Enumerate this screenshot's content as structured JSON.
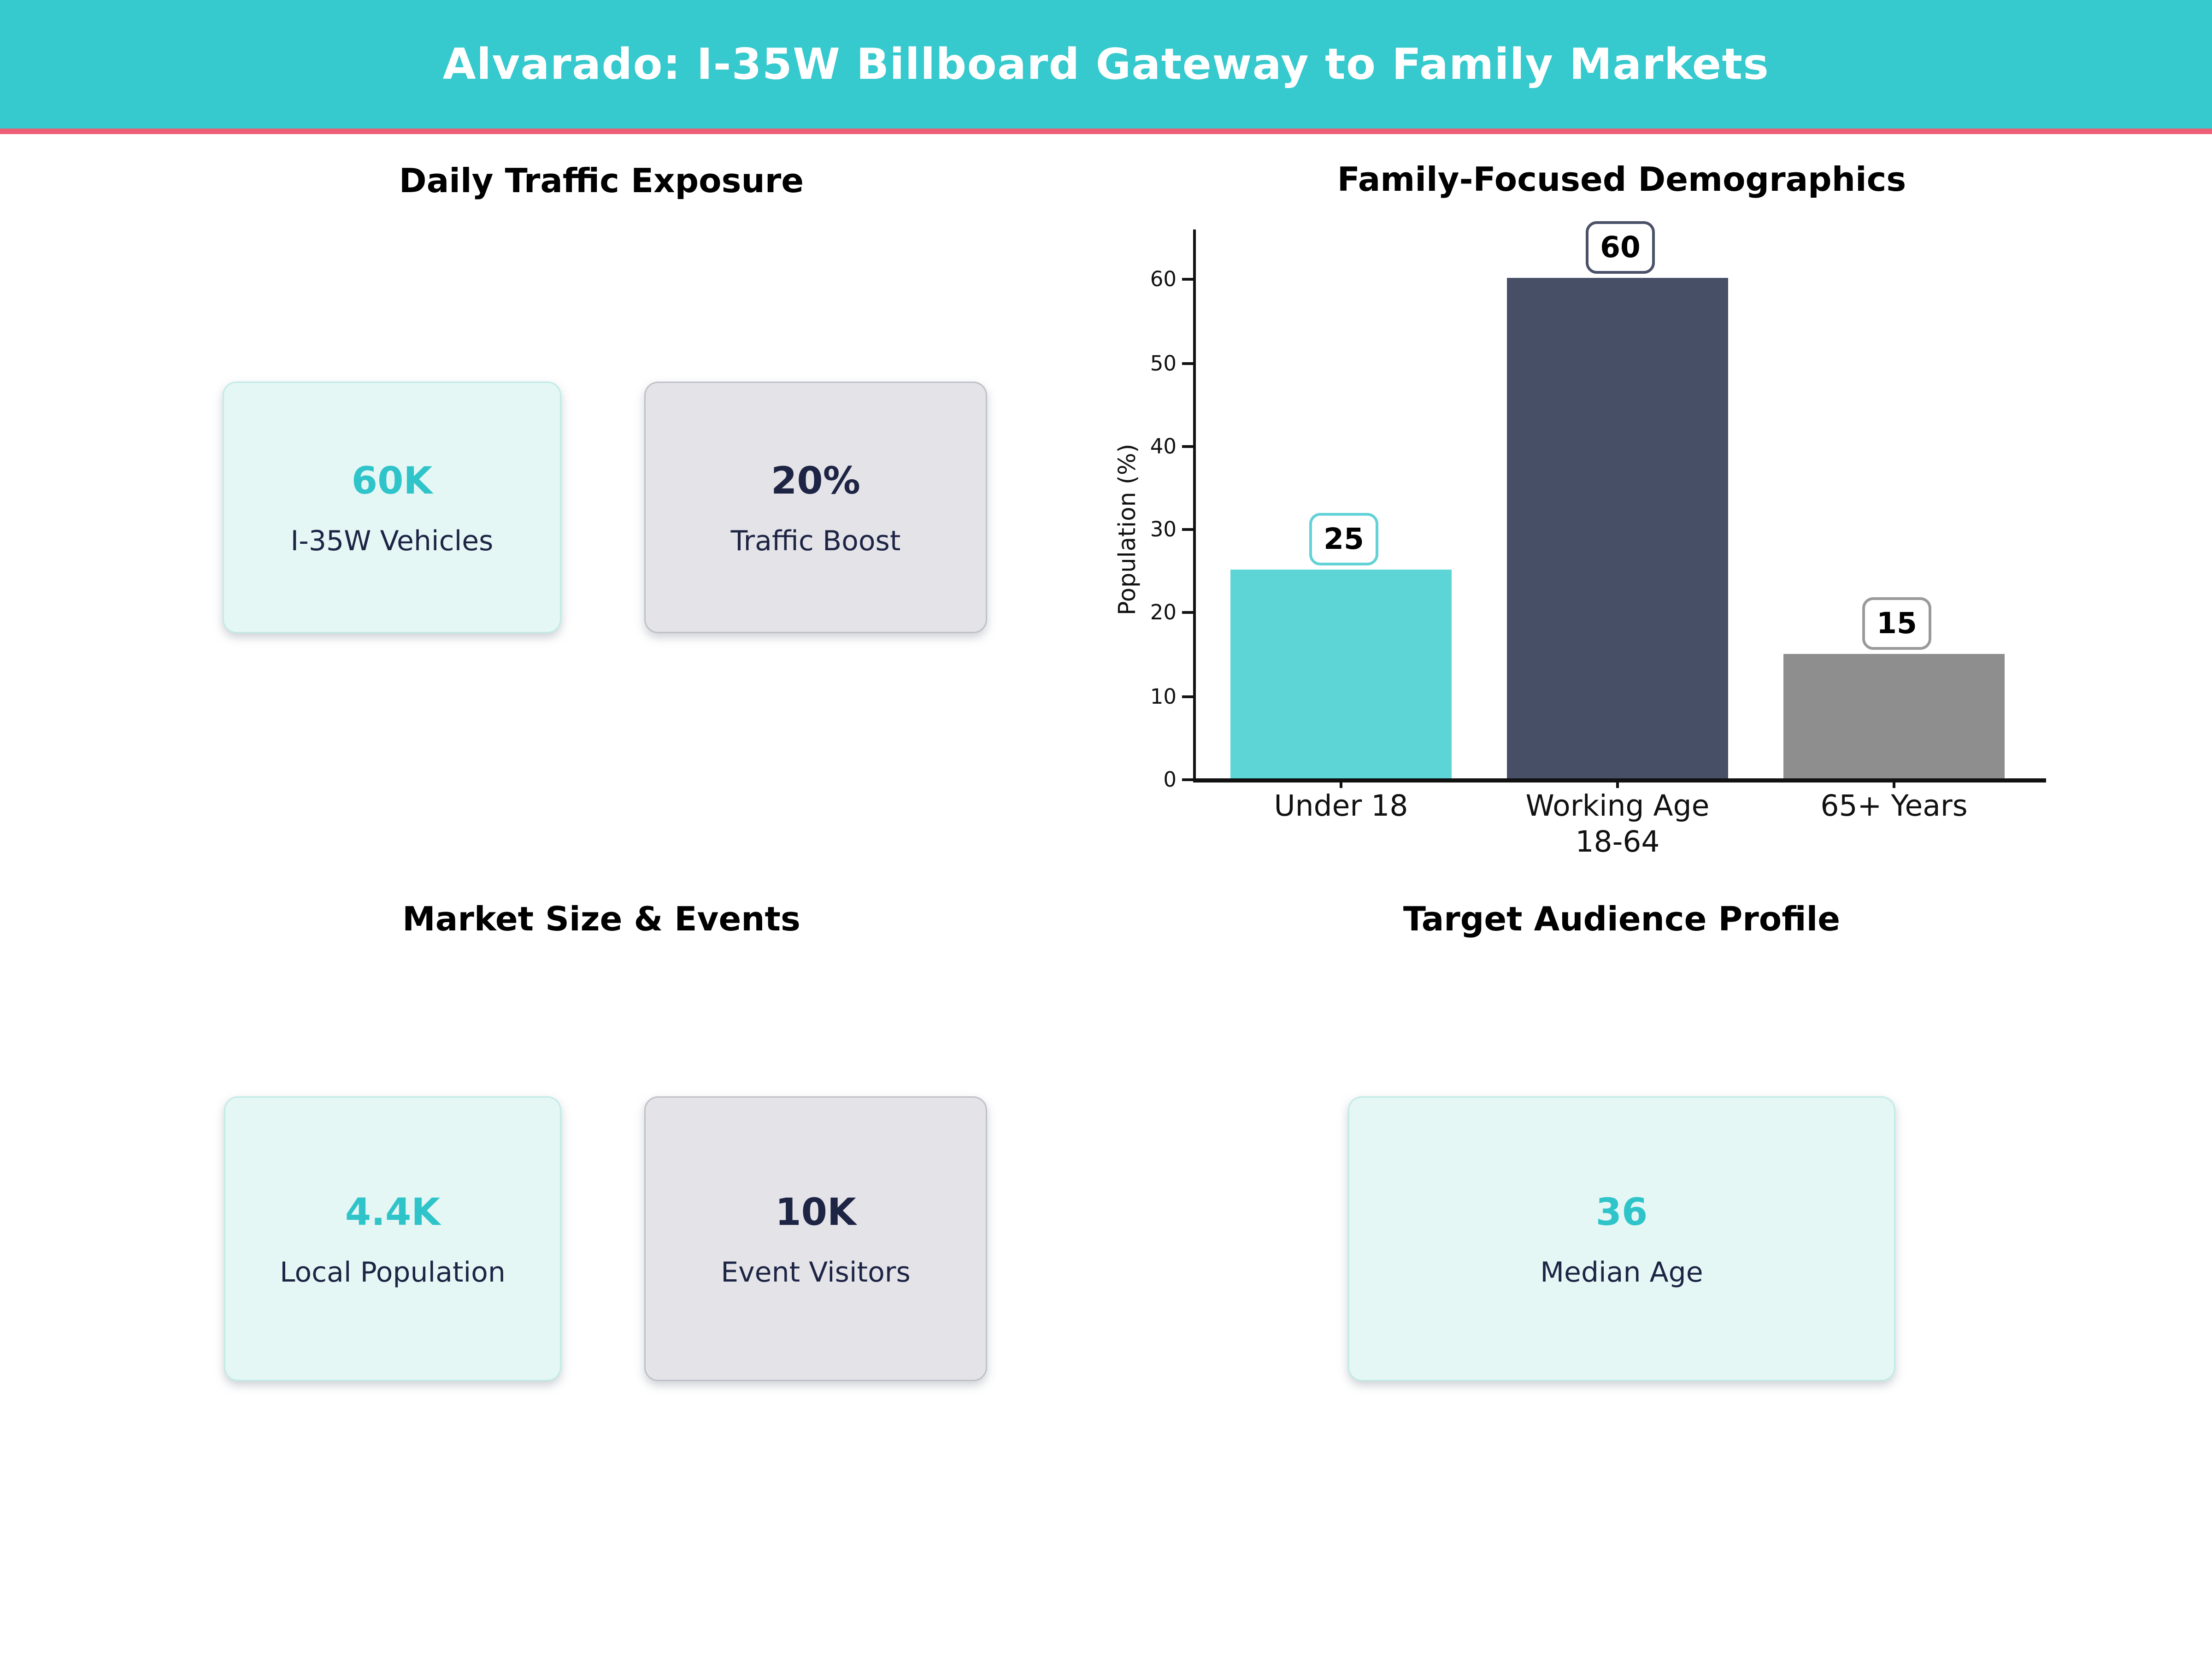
{
  "header": {
    "title": "Alvarado: I-35W Billboard Gateway to Family Markets"
  },
  "colors": {
    "header_teal": "#36c9cd",
    "accent_pink": "#ec5f76",
    "mint_card_bg": "#e4f7f5",
    "mint_card_border": "#c2ebe6",
    "gray_card_bg": "#e3e3e8",
    "gray_card_border": "#c0c0c9",
    "teal_value_text": "#2fc4c9",
    "navy_text": "#1d2444",
    "axis_black": "#111111"
  },
  "sections": {
    "traffic": {
      "heading": "Daily Traffic Exposure",
      "cards": [
        {
          "value": "60K",
          "label": "I-35W Vehicles"
        },
        {
          "value": "20%",
          "label": "Traffic Boost"
        }
      ]
    },
    "market": {
      "heading": "Market Size & Events",
      "cards": [
        {
          "value": "4.4K",
          "label": "Local Population"
        },
        {
          "value": "10K",
          "label": "Event Visitors"
        }
      ]
    },
    "audience": {
      "heading": "Target Audience Profile",
      "cards": [
        {
          "value": "36",
          "label": "Median Age"
        }
      ]
    }
  },
  "chart_data": {
    "type": "bar",
    "title": "Family-Focused Demographics",
    "categories": [
      "Under 18",
      "Working Age\n18-64",
      "65+ Years"
    ],
    "values": [
      25,
      60,
      15
    ],
    "bar_colors": [
      "#5dd5d6",
      "#474f66",
      "#8e8e8e"
    ],
    "value_box_borders": [
      "#62d2d8",
      "#4a5168",
      "#9a9a9a"
    ],
    "value_labels": [
      "25",
      "60",
      "15"
    ],
    "xlabel": "",
    "ylabel": "Population (%)",
    "yticks": [
      0,
      10,
      20,
      30,
      40,
      50,
      60
    ],
    "ylim": [
      0,
      66
    ],
    "grid": false,
    "legend": false,
    "value_labels_in_boxes": true
  }
}
